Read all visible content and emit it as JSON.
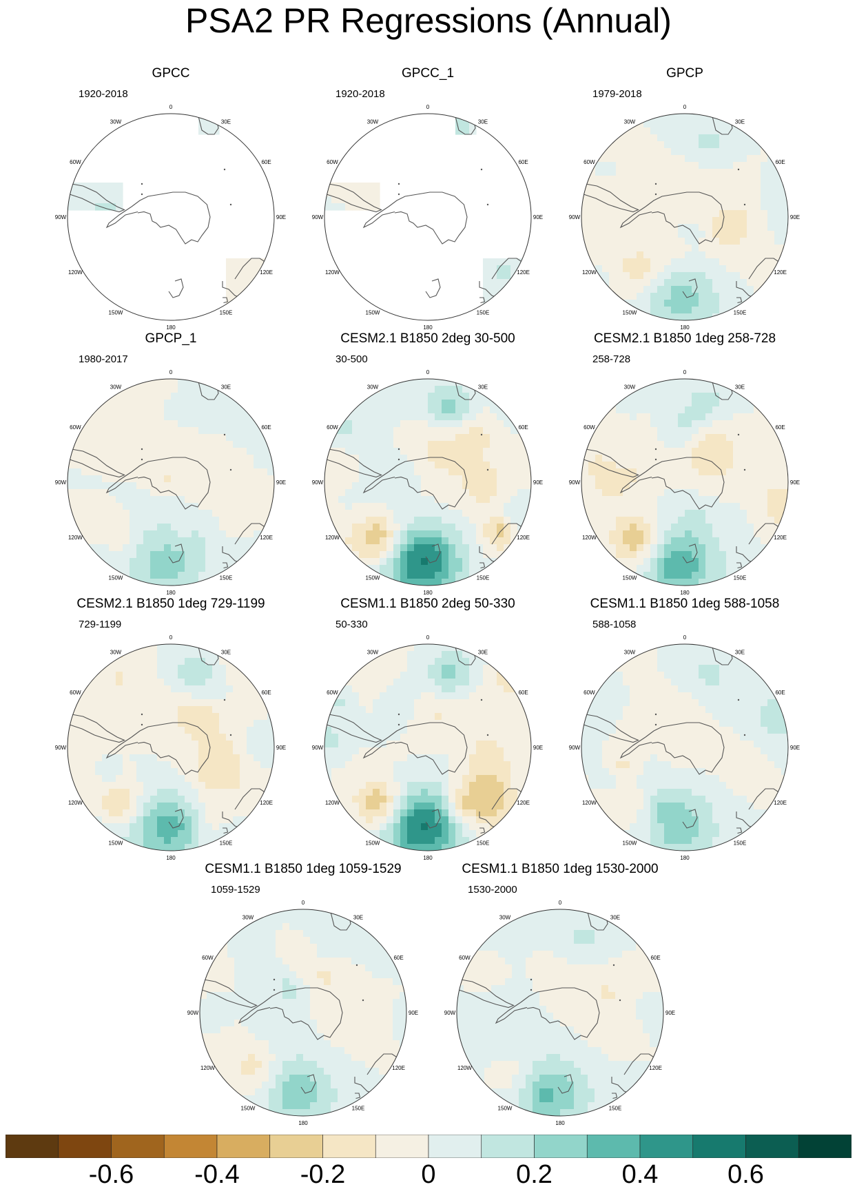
{
  "title": "PSA2 PR Regressions (Annual)",
  "chart_data": {
    "type": "polar-contour-map",
    "projection": "south-polar-stereographic",
    "longitude_labels": [
      "0",
      "30E",
      "60E",
      "90E",
      "120E",
      "150E",
      "180",
      "150W",
      "120W",
      "90W",
      "60W",
      "30W"
    ],
    "panels": [
      {
        "title": "GPCC",
        "years": "1920-2018",
        "coverage": "land-only",
        "max_abs": 0.2
      },
      {
        "title": "GPCC_1",
        "years": "1920-2018",
        "coverage": "land-only",
        "max_abs": 0.4
      },
      {
        "title": "GPCP",
        "years": "1979-2018",
        "coverage": "full",
        "max_abs": 0.3
      },
      {
        "title": "GPCP_1",
        "years": "1980-2017",
        "coverage": "full",
        "max_abs": 0.3
      },
      {
        "title": "CESM2.1 B1850 2deg 30-500",
        "years": "30-500",
        "coverage": "full",
        "max_abs": 0.6
      },
      {
        "title": "CESM2.1 B1850 1deg 258-728",
        "years": "258-728",
        "coverage": "full",
        "max_abs": 0.4
      },
      {
        "title": "CESM2.1 B1850 1deg 729-1199",
        "years": "729-1199",
        "coverage": "full",
        "max_abs": 0.4
      },
      {
        "title": "CESM1.1 B1850 2deg 50-330",
        "years": "50-330",
        "coverage": "full",
        "max_abs": 0.6
      },
      {
        "title": "CESM1.1 B1850 1deg 588-1058",
        "years": "588-1058",
        "coverage": "full",
        "max_abs": 0.3
      },
      {
        "title": "CESM1.1 B1850 1deg 1059-1529",
        "years": "1059-1529",
        "coverage": "full",
        "max_abs": 0.3
      },
      {
        "title": "CESM1.1 B1850 1deg 1530-2000",
        "years": "1530-2000",
        "coverage": "full",
        "max_abs": 0.3
      }
    ],
    "colorbar": {
      "levels": [
        -0.7,
        -0.6,
        -0.5,
        -0.4,
        -0.3,
        -0.2,
        -0.1,
        0,
        0.1,
        0.2,
        0.3,
        0.4,
        0.5,
        0.6,
        0.7
      ],
      "tick_labels": [
        "-0.6",
        "-0.4",
        "-0.2",
        "0",
        "0.2",
        "0.4",
        "0.6"
      ],
      "tick_values": [
        -0.6,
        -0.4,
        -0.2,
        0,
        0.2,
        0.4,
        0.6
      ],
      "colors": [
        "#5e3a10",
        "#7e4610",
        "#a0651e",
        "#c38634",
        "#d8ad60",
        "#e8cf94",
        "#f5e6c5",
        "#f5f0e3",
        "#e1efee",
        "#c1e6e0",
        "#92d5ca",
        "#5dbaad",
        "#2f968a",
        "#177a6e",
        "#0c5e52",
        "#024236"
      ]
    }
  }
}
